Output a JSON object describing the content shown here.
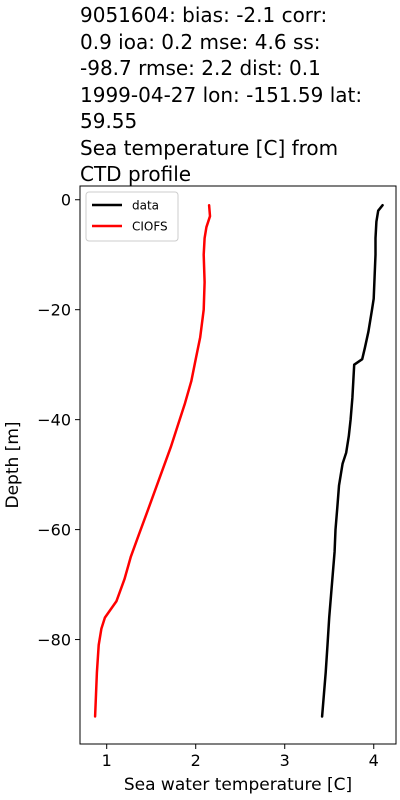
{
  "title_lines": [
    "9051604: bias: -2.1  corr:",
    "0.9  ioa: 0.2  mse: 4.6  ss:",
    "-98.7  rmse: 2.2  dist: 0.1",
    "1999-04-27 lon: -151.59 lat:",
    "59.55",
    "Sea temperature [C] from",
    "CTD profile"
  ],
  "chart_data": {
    "type": "line",
    "xlabel": "Sea water temperature [C]",
    "ylabel": "Depth [m]",
    "xlim": [
      0.7,
      4.25
    ],
    "ylim": [
      -99,
      2.5
    ],
    "xticks": [
      1,
      2,
      3,
      4
    ],
    "yticks": [
      0,
      -20,
      -40,
      -60,
      -80
    ],
    "ytick_labels": [
      "0",
      "−20",
      "−40",
      "−60",
      "−80"
    ],
    "grid": false,
    "legend_position": "top-left",
    "series": [
      {
        "name": "data",
        "color": "#000000",
        "points": [
          [
            4.1,
            -1
          ],
          [
            4.05,
            -2
          ],
          [
            4.03,
            -4
          ],
          [
            4.02,
            -7
          ],
          [
            4.02,
            -10
          ],
          [
            4.01,
            -14
          ],
          [
            4.0,
            -18
          ],
          [
            3.98,
            -20
          ],
          [
            3.94,
            -24
          ],
          [
            3.9,
            -27
          ],
          [
            3.87,
            -29
          ],
          [
            3.78,
            -30
          ],
          [
            3.77,
            -33
          ],
          [
            3.76,
            -36
          ],
          [
            3.74,
            -40
          ],
          [
            3.72,
            -43
          ],
          [
            3.69,
            -46
          ],
          [
            3.65,
            -48
          ],
          [
            3.63,
            -50
          ],
          [
            3.61,
            -52
          ],
          [
            3.59,
            -56
          ],
          [
            3.57,
            -60
          ],
          [
            3.56,
            -64
          ],
          [
            3.54,
            -68
          ],
          [
            3.52,
            -72
          ],
          [
            3.5,
            -76
          ],
          [
            3.48,
            -81
          ],
          [
            3.46,
            -86
          ],
          [
            3.44,
            -90
          ],
          [
            3.42,
            -94
          ]
        ]
      },
      {
        "name": "CIOFS",
        "color": "#ff0000",
        "points": [
          [
            2.15,
            -1
          ],
          [
            2.16,
            -3
          ],
          [
            2.14,
            -4
          ],
          [
            2.12,
            -5
          ],
          [
            2.1,
            -7
          ],
          [
            2.09,
            -10
          ],
          [
            2.1,
            -15
          ],
          [
            2.09,
            -20
          ],
          [
            2.05,
            -25
          ],
          [
            2.0,
            -29
          ],
          [
            1.95,
            -33
          ],
          [
            1.88,
            -37
          ],
          [
            1.8,
            -41
          ],
          [
            1.72,
            -45
          ],
          [
            1.63,
            -49
          ],
          [
            1.54,
            -53
          ],
          [
            1.45,
            -57
          ],
          [
            1.36,
            -61
          ],
          [
            1.27,
            -65
          ],
          [
            1.2,
            -69
          ],
          [
            1.11,
            -73
          ],
          [
            0.98,
            -76
          ],
          [
            0.94,
            -78
          ],
          [
            0.91,
            -81
          ],
          [
            0.89,
            -86
          ],
          [
            0.88,
            -90
          ],
          [
            0.87,
            -94
          ]
        ]
      }
    ]
  }
}
